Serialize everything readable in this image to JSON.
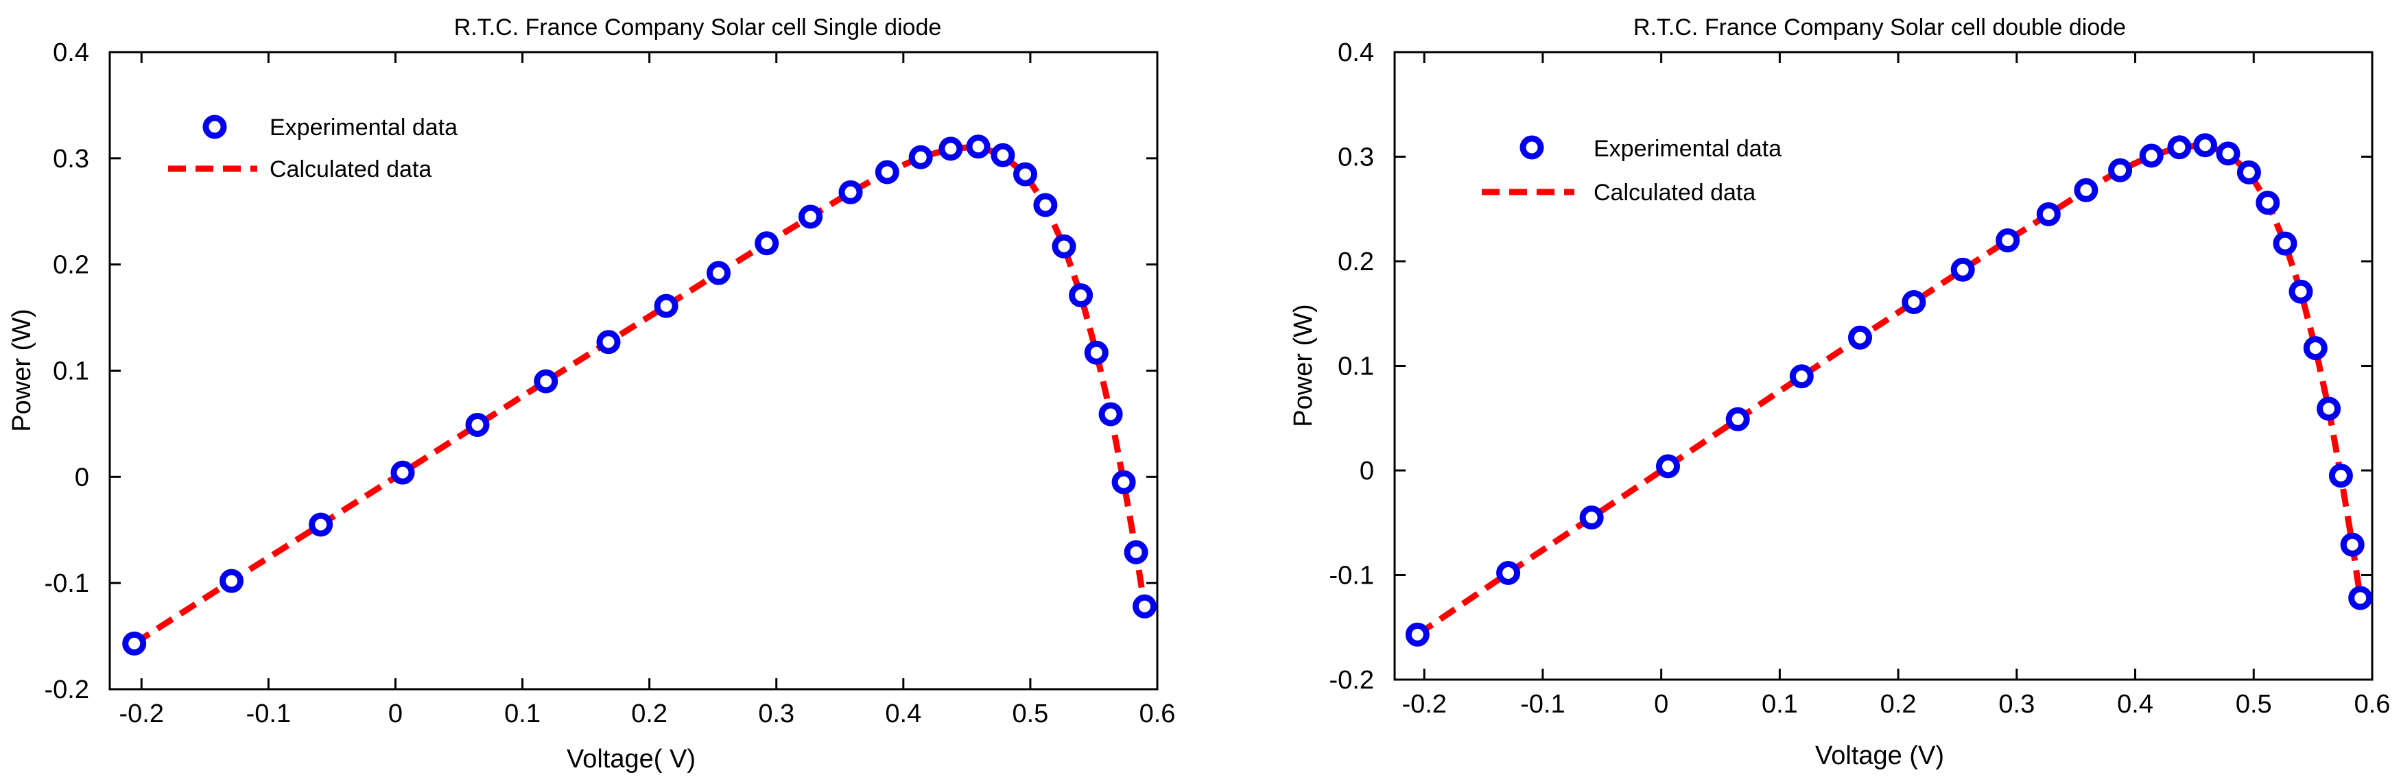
{
  "chart_data": [
    {
      "type": "line",
      "title": "R.T.C. France Company Solar cell Single diode",
      "xlabel": "Voltage( V)",
      "ylabel": "Power (W)",
      "xlim": [
        -0.225,
        0.6
      ],
      "ylim": [
        -0.2,
        0.4
      ],
      "xticks": [
        -0.2,
        -0.1,
        0,
        0.1,
        0.2,
        0.3,
        0.4,
        0.5,
        0.6
      ],
      "xtick_labels": [
        "-0.2",
        "-0.1",
        "0",
        "0.1",
        "0.2",
        "0.3",
        "0.4",
        "0.5",
        "0.6"
      ],
      "yticks": [
        -0.2,
        -0.1,
        0,
        0.1,
        0.2,
        0.3,
        0.4
      ],
      "ytick_labels": [
        "-0.2",
        "-0.1",
        "0",
        "0.1",
        "0.2",
        "0.3",
        "0.4"
      ],
      "grid": false,
      "legend_position": "top-left",
      "series": [
        {
          "name": "Experimental data",
          "style": "markers",
          "color": "#0000ee",
          "x": [
            -0.2057,
            -0.1291,
            -0.0588,
            0.0057,
            0.0646,
            0.1185,
            0.1678,
            0.2132,
            0.2545,
            0.2924,
            0.3269,
            0.3585,
            0.3873,
            0.4137,
            0.4373,
            0.459,
            0.4784,
            0.496,
            0.5119,
            0.5265,
            0.5398,
            0.5521,
            0.5633,
            0.5736,
            0.5833,
            0.59
          ],
          "y": [
            -0.157,
            -0.098,
            -0.045,
            0.004,
            0.049,
            0.09,
            0.127,
            0.161,
            0.192,
            0.22,
            0.245,
            0.268,
            0.287,
            0.301,
            0.309,
            0.311,
            0.303,
            0.285,
            0.256,
            0.217,
            0.171,
            0.117,
            0.059,
            -0.005,
            -0.071,
            -0.122
          ]
        },
        {
          "name": "Calculated data",
          "style": "dashed-line",
          "color": "#ff0000",
          "x": [
            -0.2057,
            -0.1291,
            -0.0588,
            0.0057,
            0.0646,
            0.1185,
            0.1678,
            0.2132,
            0.2545,
            0.2924,
            0.3269,
            0.3585,
            0.3873,
            0.4137,
            0.4373,
            0.459,
            0.4784,
            0.496,
            0.5119,
            0.5265,
            0.5398,
            0.5521,
            0.5633,
            0.5736,
            0.5833,
            0.59
          ],
          "y": [
            -0.157,
            -0.098,
            -0.045,
            0.004,
            0.049,
            0.09,
            0.127,
            0.161,
            0.192,
            0.22,
            0.245,
            0.268,
            0.287,
            0.301,
            0.309,
            0.311,
            0.303,
            0.285,
            0.256,
            0.217,
            0.171,
            0.117,
            0.059,
            -0.005,
            -0.071,
            -0.122
          ]
        }
      ]
    },
    {
      "type": "line",
      "title": "R.T.C.  France Company  Solar cell double diode",
      "xlabel": "Voltage (V)",
      "ylabel": "Power (W)",
      "xlim": [
        -0.225,
        0.6
      ],
      "ylim": [
        -0.2,
        0.4
      ],
      "xticks": [
        -0.2,
        -0.1,
        0,
        0.1,
        0.2,
        0.3,
        0.4,
        0.5,
        0.6
      ],
      "xtick_labels": [
        "-0.2",
        "-0.1",
        "0",
        "0.1",
        "0.2",
        "0.3",
        "0.4",
        "0.5",
        "0.6"
      ],
      "yticks": [
        -0.2,
        -0.1,
        0,
        0.1,
        0.2,
        0.3,
        0.4
      ],
      "ytick_labels": [
        "-0.2",
        "-0.1",
        "0",
        "0.1",
        "0.2",
        "0.3",
        "0.4"
      ],
      "grid": false,
      "legend_position": "top-left",
      "series": [
        {
          "name": "Experimental data",
          "style": "markers",
          "color": "#0000ee",
          "x": [
            -0.2057,
            -0.1291,
            -0.0588,
            0.0057,
            0.0646,
            0.1185,
            0.1678,
            0.2132,
            0.2545,
            0.2924,
            0.3269,
            0.3585,
            0.3873,
            0.4137,
            0.4373,
            0.459,
            0.4784,
            0.496,
            0.5119,
            0.5265,
            0.5398,
            0.5521,
            0.5633,
            0.5736,
            0.5833,
            0.59
          ],
          "y": [
            -0.157,
            -0.098,
            -0.045,
            0.004,
            0.049,
            0.09,
            0.127,
            0.161,
            0.192,
            0.22,
            0.245,
            0.268,
            0.287,
            0.301,
            0.309,
            0.311,
            0.303,
            0.285,
            0.256,
            0.217,
            0.171,
            0.117,
            0.059,
            -0.005,
            -0.071,
            -0.122
          ]
        },
        {
          "name": "Calculated data",
          "style": "dashed-line",
          "color": "#ff0000",
          "x": [
            -0.2057,
            -0.1291,
            -0.0588,
            0.0057,
            0.0646,
            0.1185,
            0.1678,
            0.2132,
            0.2545,
            0.2924,
            0.3269,
            0.3585,
            0.3873,
            0.4137,
            0.4373,
            0.459,
            0.4784,
            0.496,
            0.5119,
            0.5265,
            0.5398,
            0.5521,
            0.5633,
            0.5736,
            0.5833,
            0.59
          ],
          "y": [
            -0.157,
            -0.098,
            -0.045,
            0.004,
            0.049,
            0.09,
            0.127,
            0.161,
            0.192,
            0.22,
            0.245,
            0.268,
            0.287,
            0.301,
            0.309,
            0.311,
            0.303,
            0.285,
            0.256,
            0.217,
            0.171,
            0.117,
            0.059,
            -0.005,
            -0.071,
            -0.122
          ]
        }
      ]
    }
  ]
}
